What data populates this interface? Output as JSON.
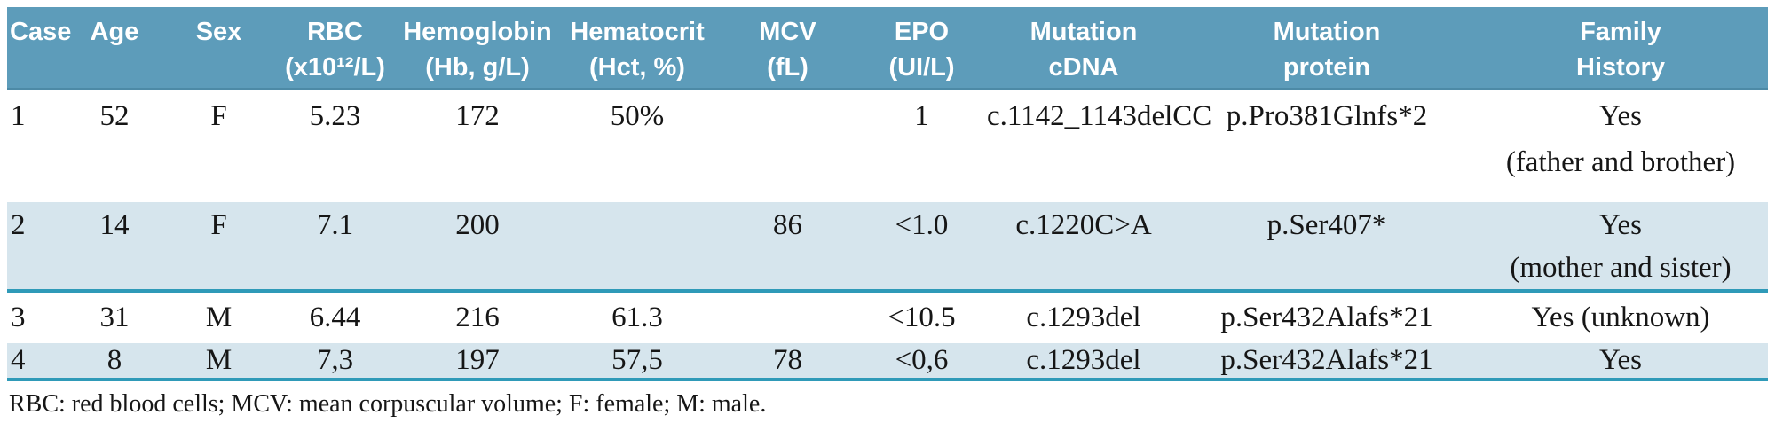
{
  "table": {
    "columns": [
      {
        "id": "case",
        "label": "Case",
        "line2": ""
      },
      {
        "id": "age",
        "label": "Age",
        "line2": ""
      },
      {
        "id": "sex",
        "label": "Sex",
        "line2": ""
      },
      {
        "id": "rbc",
        "label": "RBC",
        "line2": "(x10¹²/L)"
      },
      {
        "id": "hemoglobin",
        "label": "Hemoglobin",
        "line2": "(Hb, g/L)"
      },
      {
        "id": "hematocrit",
        "label": "Hematocrit",
        "line2": "(Hct, %)"
      },
      {
        "id": "mcv",
        "label": "MCV",
        "line2": "(fL)"
      },
      {
        "id": "epo",
        "label": "EPO",
        "line2": "(UI/L)"
      },
      {
        "id": "mutation-cdna",
        "label": "Mutation",
        "line2": "cDNA"
      },
      {
        "id": "mutation-protein",
        "label": "Mutation",
        "line2": "protein"
      },
      {
        "id": "family-history",
        "label": "Family",
        "line2": "History"
      }
    ],
    "rows": [
      {
        "shaded": false,
        "cells": [
          "1",
          "52",
          "F",
          "5.23",
          "172",
          "50%",
          "",
          "1",
          "c.1142_1143delCC",
          "p.Pro381Glnfs*2",
          "Yes\n(father and brother)"
        ]
      },
      {
        "shaded": true,
        "cells": [
          "2",
          "14",
          "F",
          "7.1",
          "200",
          "",
          "86",
          "<1.0",
          "c.1220C>A",
          "p.Ser407*",
          "Yes\n(mother and sister)"
        ]
      },
      {
        "shaded": false,
        "cells": [
          "3",
          "31",
          "M",
          "6.44",
          "216",
          "61.3",
          "",
          "<10.5",
          "c.1293del",
          "p.Ser432Alafs*21",
          "Yes  (unknown)"
        ]
      },
      {
        "shaded": true,
        "cells": [
          "4",
          "8",
          "M",
          "7,3",
          "197",
          "57,5",
          "78",
          "<0,6",
          "c.1293del",
          "p.Ser432Alafs*21",
          "Yes"
        ]
      }
    ],
    "footnote": "RBC: red blood cells; MCV: mean corpuscular volume; F: female; M: male.",
    "colors": {
      "header_bg": "#5d9cba",
      "header_text": "#ffffff",
      "row_shaded_bg": "#d6e5ed",
      "divider": "#2f9ab8",
      "text": "#161616"
    }
  }
}
